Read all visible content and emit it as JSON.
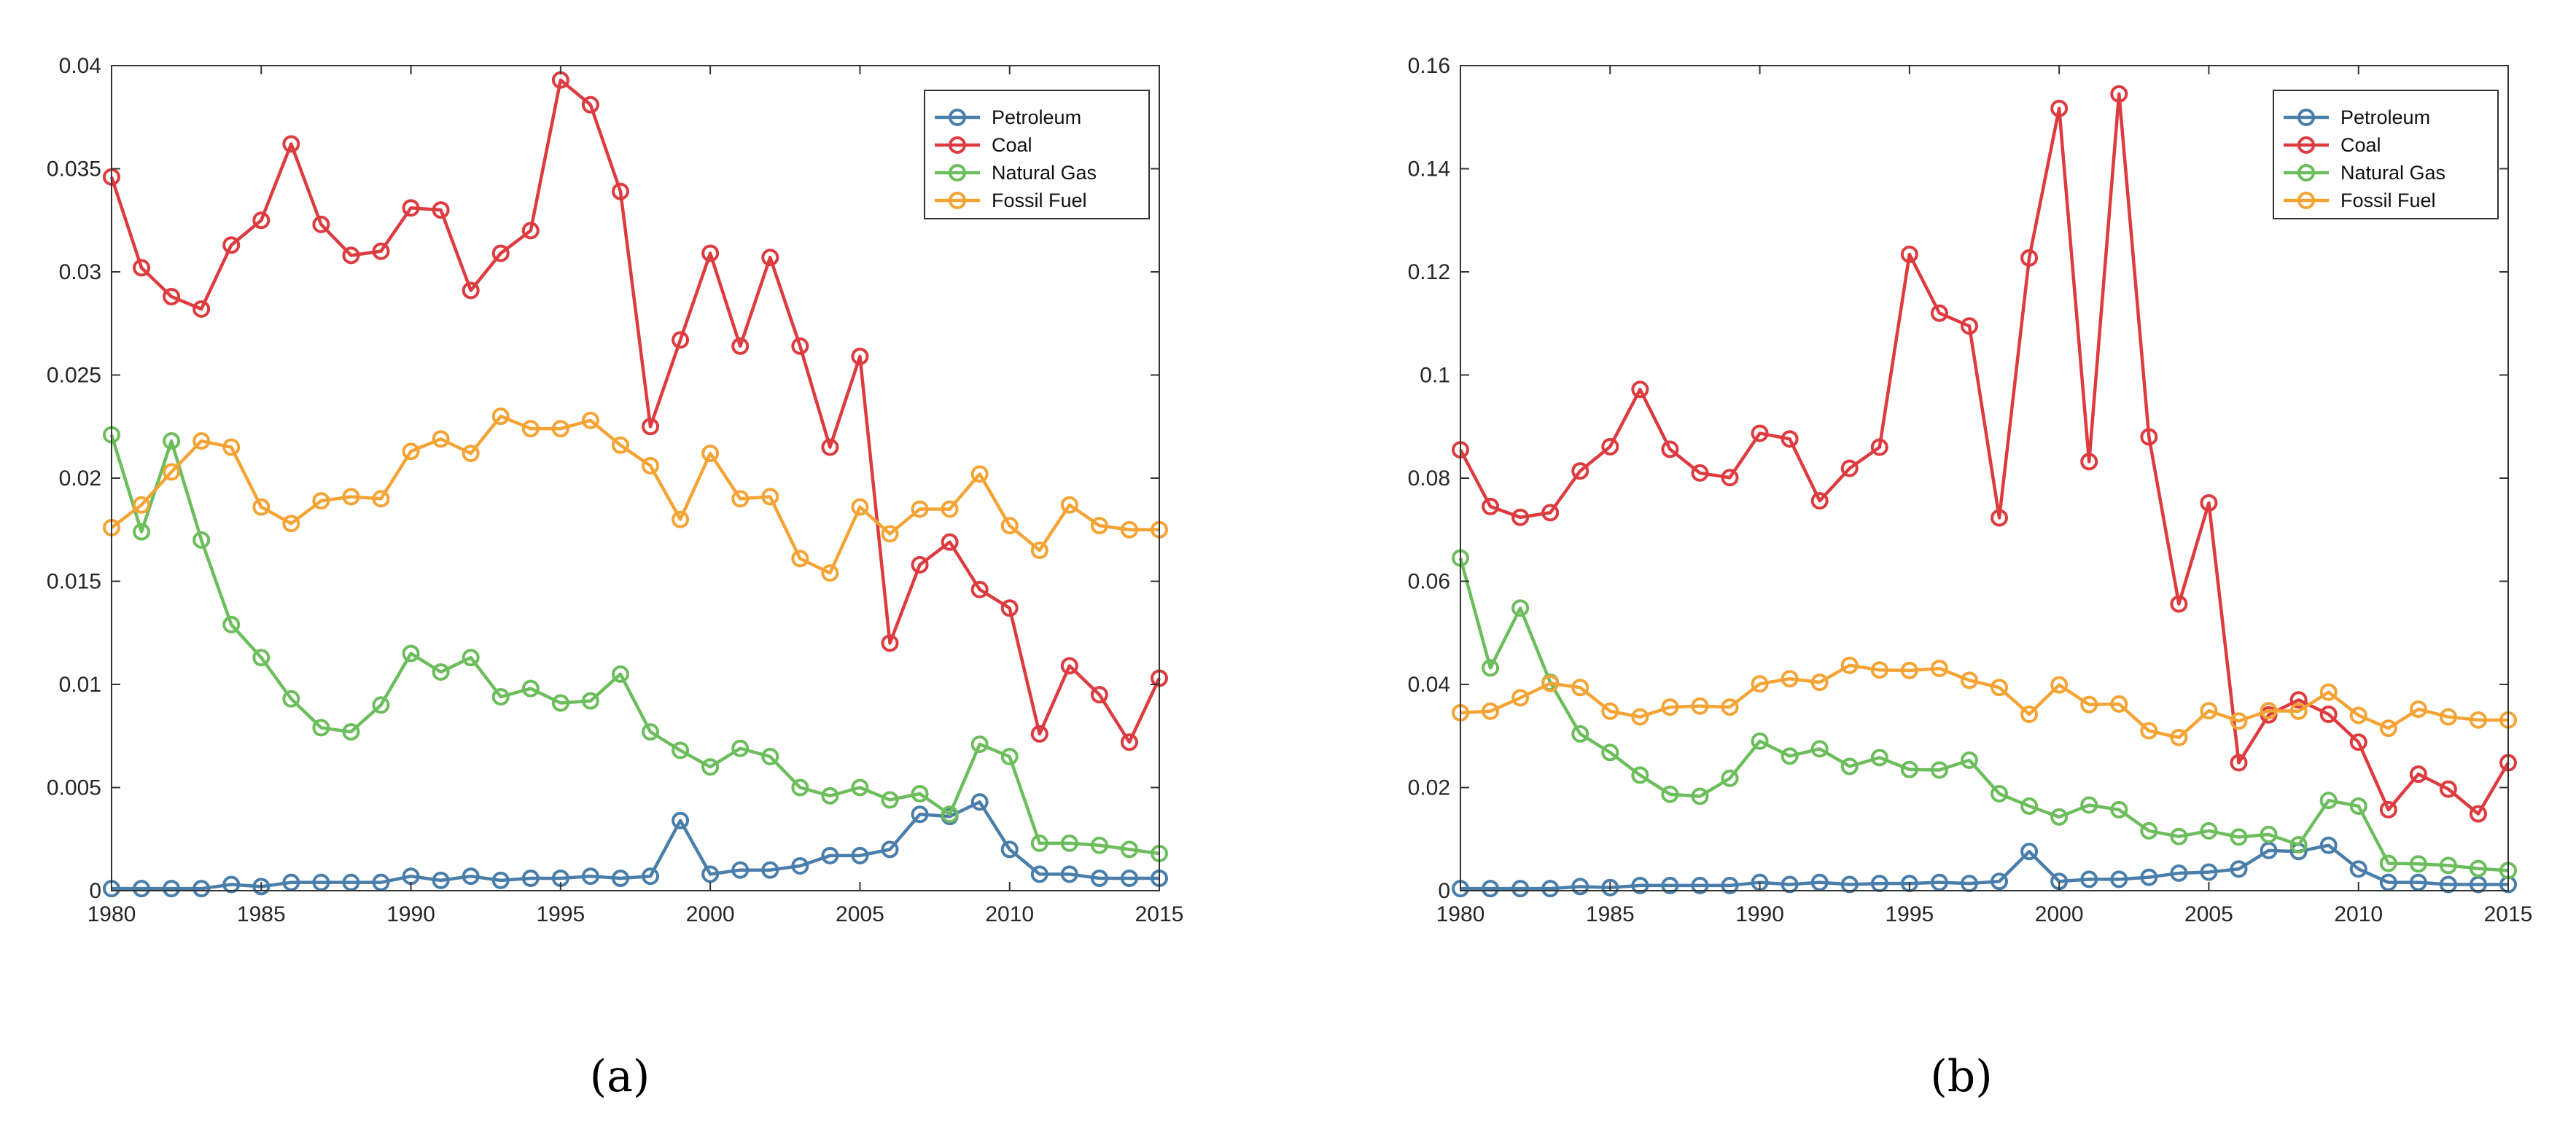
{
  "colors": {
    "Petroleum": "#4a7eaa",
    "Coal": "#dd3b3f",
    "Natural Gas": "#6cbd5c",
    "Fossil Fuel": "#f5a334",
    "axis": "#333333",
    "background": "#ffffff"
  },
  "chart_data": [
    {
      "type": "line",
      "panel_label": "(a)",
      "title": "",
      "xlabel": "",
      "ylabel": "",
      "xlim": [
        1980,
        2015
      ],
      "ylim": [
        0,
        0.04
      ],
      "grid": false,
      "legend_position": "top-right",
      "x_ticks": [
        "1980",
        "1985",
        "1990",
        "1995",
        "2000",
        "2005",
        "2010",
        "2015"
      ],
      "y_ticks": [
        "0",
        "0.005",
        "0.01",
        "0.015",
        "0.02",
        "0.025",
        "0.03",
        "0.035",
        "0.04"
      ],
      "x": [
        1980,
        1981,
        1982,
        1983,
        1984,
        1985,
        1986,
        1987,
        1988,
        1989,
        1990,
        1991,
        1992,
        1993,
        1994,
        1995,
        1996,
        1997,
        1998,
        1999,
        2000,
        2001,
        2002,
        2003,
        2004,
        2005,
        2006,
        2007,
        2008,
        2009,
        2010,
        2011,
        2012,
        2013,
        2014,
        2015
      ],
      "series": [
        {
          "name": "Petroleum",
          "values": [
            0.0001,
            0.0001,
            0.0001,
            0.0001,
            0.0003,
            0.0002,
            0.0004,
            0.0004,
            0.0004,
            0.0004,
            0.0007,
            0.0005,
            0.0007,
            0.0005,
            0.0006,
            0.0006,
            0.0007,
            0.0006,
            0.0007,
            0.0034,
            0.0008,
            0.001,
            0.001,
            0.0012,
            0.0017,
            0.0017,
            0.002,
            0.0037,
            0.0036,
            0.0043,
            0.002,
            0.0008,
            0.0008,
            0.0006,
            0.0006,
            0.0006
          ]
        },
        {
          "name": "Coal",
          "values": [
            0.0346,
            0.0302,
            0.0288,
            0.0282,
            0.0313,
            0.0325,
            0.0362,
            0.0323,
            0.0308,
            0.031,
            0.0331,
            0.033,
            0.0291,
            0.0309,
            0.032,
            0.0393,
            0.0381,
            0.0339,
            0.0225,
            0.0267,
            0.0309,
            0.0264,
            0.0307,
            0.0264,
            0.0215,
            0.0259,
            0.012,
            0.0158,
            0.0169,
            0.0146,
            0.0137,
            0.0076,
            0.0109,
            0.0095,
            0.0072,
            0.0103
          ]
        },
        {
          "name": "Natural Gas",
          "values": [
            0.0221,
            0.0174,
            0.0218,
            0.017,
            0.0129,
            0.0113,
            0.0093,
            0.0079,
            0.0077,
            0.009,
            0.0115,
            0.0106,
            0.0113,
            0.0094,
            0.0098,
            0.0091,
            0.0092,
            0.0105,
            0.0077,
            0.0068,
            0.006,
            0.0069,
            0.0065,
            0.005,
            0.0046,
            0.005,
            0.0044,
            0.0047,
            0.0037,
            0.0071,
            0.0065,
            0.0023,
            0.0023,
            0.0022,
            0.002,
            0.0018
          ]
        },
        {
          "name": "Fossil Fuel",
          "values": [
            0.0176,
            0.0187,
            0.0203,
            0.0218,
            0.0215,
            0.0186,
            0.0178,
            0.0189,
            0.0191,
            0.019,
            0.0213,
            0.0219,
            0.0212,
            0.023,
            0.0224,
            0.0224,
            0.0228,
            0.0216,
            0.0206,
            0.018,
            0.0212,
            0.019,
            0.0191,
            0.0161,
            0.0154,
            0.0186,
            0.0173,
            0.0185,
            0.0185,
            0.0202,
            0.0177,
            0.0165,
            0.0187,
            0.0177,
            0.0175,
            0.0175
          ]
        }
      ]
    },
    {
      "type": "line",
      "panel_label": "(b)",
      "title": "",
      "xlabel": "",
      "ylabel": "",
      "xlim": [
        1980,
        2015
      ],
      "ylim": [
        0,
        0.16
      ],
      "grid": false,
      "legend_position": "top-right",
      "x_ticks": [
        "1980",
        "1985",
        "1990",
        "1995",
        "2000",
        "2005",
        "2010",
        "2015"
      ],
      "y_ticks": [
        "0",
        "0.02",
        "0.04",
        "0.06",
        "0.08",
        "0.1",
        "0.12",
        "0.14",
        "0.16"
      ],
      "x": [
        1980,
        1981,
        1982,
        1983,
        1984,
        1985,
        1986,
        1987,
        1988,
        1989,
        1990,
        1991,
        1992,
        1993,
        1994,
        1995,
        1996,
        1997,
        1998,
        1999,
        2000,
        2001,
        2002,
        2003,
        2004,
        2005,
        2006,
        2007,
        2008,
        2009,
        2010,
        2011,
        2012,
        2013,
        2014,
        2015
      ],
      "series": [
        {
          "name": "Petroleum",
          "values": [
            0.0004,
            0.0004,
            0.0004,
            0.0004,
            0.0008,
            0.0006,
            0.001,
            0.001,
            0.001,
            0.001,
            0.0016,
            0.0012,
            0.0016,
            0.0012,
            0.0014,
            0.0014,
            0.0016,
            0.0014,
            0.0018,
            0.0076,
            0.0018,
            0.0022,
            0.0022,
            0.0026,
            0.0034,
            0.0036,
            0.0042,
            0.0078,
            0.0076,
            0.0088,
            0.0042,
            0.0016,
            0.0016,
            0.0012,
            0.0012,
            0.0012
          ]
        },
        {
          "name": "Coal",
          "values": [
            0.0855,
            0.0745,
            0.0724,
            0.0733,
            0.0814,
            0.0861,
            0.0972,
            0.0856,
            0.081,
            0.0801,
            0.0887,
            0.0876,
            0.0756,
            0.0819,
            0.086,
            0.1234,
            0.112,
            0.1095,
            0.0723,
            0.1227,
            0.1517,
            0.0832,
            0.1545,
            0.088,
            0.0556,
            0.0752,
            0.0248,
            0.0341,
            0.037,
            0.0342,
            0.0288,
            0.0157,
            0.0226,
            0.0197,
            0.0149,
            0.0248
          ]
        },
        {
          "name": "Natural Gas",
          "values": [
            0.0645,
            0.0432,
            0.0548,
            0.0404,
            0.0304,
            0.0268,
            0.0224,
            0.0187,
            0.0183,
            0.0218,
            0.029,
            0.0261,
            0.0275,
            0.0241,
            0.0258,
            0.0235,
            0.0234,
            0.0253,
            0.0188,
            0.0164,
            0.0143,
            0.0166,
            0.0157,
            0.0116,
            0.0105,
            0.0116,
            0.0104,
            0.0109,
            0.0089,
            0.0175,
            0.0164,
            0.0053,
            0.0052,
            0.0049,
            0.0043,
            0.0039
          ]
        },
        {
          "name": "Fossil Fuel",
          "values": [
            0.0345,
            0.0348,
            0.0374,
            0.0402,
            0.0394,
            0.0348,
            0.0337,
            0.0356,
            0.0358,
            0.0356,
            0.0401,
            0.0411,
            0.0404,
            0.0437,
            0.0428,
            0.0427,
            0.0431,
            0.0408,
            0.0394,
            0.0342,
            0.0399,
            0.0361,
            0.0362,
            0.031,
            0.0297,
            0.0349,
            0.0329,
            0.0349,
            0.0348,
            0.0385,
            0.034,
            0.0315,
            0.0352,
            0.0337,
            0.0331,
            0.0331
          ]
        }
      ]
    }
  ]
}
